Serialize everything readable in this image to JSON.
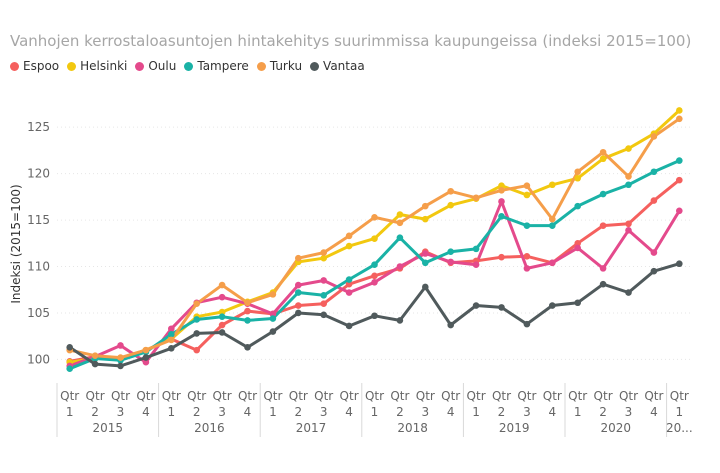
{
  "chart_data": {
    "type": "line",
    "title": "Vanhojen kerrostaloasuntojen hintakehitys suurimmissa kaupungeissa (indeksi 2015=100)",
    "ylabel": "Indeksi (2015=100)",
    "xlabel": "",
    "ylim": [
      98,
      129
    ],
    "yticks": [
      100,
      105,
      110,
      115,
      120,
      125
    ],
    "quarter_prefix": "Qtr",
    "categories": [
      "1",
      "2",
      "3",
      "4",
      "1",
      "2",
      "3",
      "4",
      "1",
      "2",
      "3",
      "4",
      "1",
      "2",
      "3",
      "4",
      "1",
      "2",
      "3",
      "4",
      "1",
      "2",
      "3",
      "4",
      "1"
    ],
    "year_groups": [
      {
        "label": "2015",
        "count": 4
      },
      {
        "label": "2016",
        "count": 4
      },
      {
        "label": "2017",
        "count": 4
      },
      {
        "label": "2018",
        "count": 4
      },
      {
        "label": "2019",
        "count": 4
      },
      {
        "label": "2020",
        "count": 4
      },
      {
        "label": "20...",
        "count": 1
      }
    ],
    "grid": true,
    "legend_position": "top-left",
    "series": [
      {
        "name": "Espoo",
        "color": "#f5605e",
        "values": [
          99.8,
          100.3,
          100.1,
          101.0,
          102.2,
          101.0,
          103.7,
          105.2,
          104.9,
          105.8,
          106.0,
          108.1,
          109.0,
          109.8,
          111.6,
          110.4,
          110.6,
          111.0,
          111.1,
          110.4,
          112.5,
          114.4,
          114.6,
          117.1,
          119.3
        ]
      },
      {
        "name": "Helsinki",
        "color": "#f2c80f",
        "values": [
          99.7,
          100.1,
          100.1,
          101.0,
          102.2,
          104.6,
          105.1,
          106.2,
          107.2,
          110.5,
          110.9,
          112.2,
          113.0,
          115.6,
          115.1,
          116.6,
          117.3,
          118.7,
          117.7,
          118.8,
          119.5,
          121.6,
          122.7,
          124.3,
          126.8
        ]
      },
      {
        "name": "Oulu",
        "color": "#e44a8c",
        "values": [
          99.3,
          100.3,
          101.5,
          99.7,
          103.3,
          106.1,
          106.7,
          106.0,
          104.9,
          108.0,
          108.5,
          107.2,
          108.3,
          110.0,
          111.4,
          110.5,
          110.2,
          117.0,
          109.8,
          110.4,
          112.0,
          109.8,
          113.9,
          111.5,
          116.0
        ]
      },
      {
        "name": "Tampere",
        "color": "#1ab2a6",
        "values": [
          99.0,
          100.1,
          99.9,
          100.8,
          102.7,
          104.3,
          104.6,
          104.2,
          104.4,
          107.2,
          106.9,
          108.6,
          110.2,
          113.1,
          110.4,
          111.6,
          111.9,
          115.4,
          114.4,
          114.4,
          116.5,
          117.8,
          118.8,
          120.2,
          121.4
        ]
      },
      {
        "name": "Turku",
        "color": "#f59e4a",
        "values": [
          101.0,
          100.4,
          100.2,
          101.0,
          102.1,
          106.0,
          108.0,
          106.1,
          107.0,
          110.9,
          111.5,
          113.3,
          115.3,
          114.7,
          116.5,
          118.1,
          117.4,
          118.2,
          118.7,
          115.1,
          120.2,
          122.3,
          119.7,
          124.0,
          125.9
        ]
      },
      {
        "name": "Vantaa",
        "color": "#505a5c",
        "values": [
          101.3,
          99.5,
          99.3,
          100.2,
          101.2,
          102.8,
          102.9,
          101.3,
          103.0,
          105.0,
          104.8,
          103.6,
          104.7,
          104.2,
          107.8,
          103.7,
          105.8,
          105.6,
          103.8,
          105.8,
          106.1,
          108.1,
          107.2,
          109.5,
          110.3
        ]
      }
    ]
  }
}
